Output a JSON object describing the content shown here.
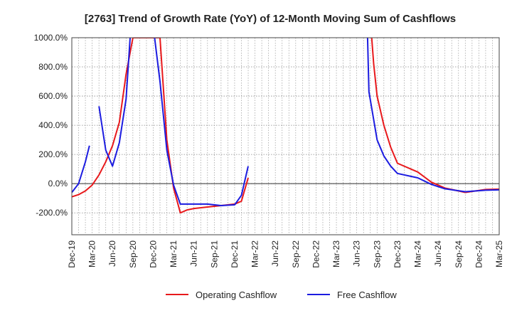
{
  "chart_data": {
    "type": "line",
    "title": "[2763]  Trend of Growth Rate (YoY) of 12-Month Moving Sum of Cashflows",
    "xlabel": "",
    "ylabel": "",
    "ylim": [
      -350,
      1000
    ],
    "y_ticks": [
      -200,
      0,
      200,
      400,
      600,
      800,
      1000
    ],
    "y_tick_labels": [
      "-200.0%",
      "0.0%",
      "200.0%",
      "400.0%",
      "600.0%",
      "800.0%",
      "1000.0%"
    ],
    "x_tick_labels": [
      "Dec-19",
      "Mar-20",
      "Jun-20",
      "Sep-20",
      "Dec-20",
      "Mar-21",
      "Jun-21",
      "Sep-21",
      "Dec-21",
      "Mar-22",
      "Jun-22",
      "Sep-22",
      "Dec-22",
      "Mar-23",
      "Jun-23",
      "Sep-23",
      "Dec-23",
      "Mar-24",
      "Jun-24",
      "Sep-24",
      "Dec-24",
      "Mar-25"
    ],
    "grid": true,
    "legend_position": "bottom",
    "series": [
      {
        "name": "Operating Cashflow",
        "color": "#e8191c",
        "points": [
          [
            0,
            -90
          ],
          [
            1,
            -75
          ],
          [
            2,
            -50
          ],
          [
            3,
            -10
          ],
          [
            4,
            60
          ],
          [
            5,
            150
          ],
          [
            6,
            260
          ],
          [
            7,
            420
          ],
          [
            8,
            750
          ],
          [
            9,
            1000
          ],
          [
            9.1,
            1000
          ],
          [
            12.9,
            1000
          ],
          [
            13,
            1000
          ],
          [
            14,
            300
          ],
          [
            15,
            -30
          ],
          [
            16,
            -200
          ],
          [
            17,
            -180
          ],
          [
            18,
            -170
          ],
          [
            20,
            -160
          ],
          [
            22,
            -150
          ],
          [
            24,
            -140
          ],
          [
            25,
            -120
          ],
          [
            26,
            40
          ],
          null,
          [
            44.2,
            1000
          ],
          [
            44.5,
            820
          ],
          [
            45,
            600
          ],
          [
            46,
            400
          ],
          [
            47,
            250
          ],
          [
            48,
            140
          ],
          [
            51,
            80
          ],
          [
            53,
            10
          ],
          [
            55,
            -30
          ],
          [
            58,
            -60
          ],
          [
            61,
            -40
          ],
          [
            65,
            -35
          ],
          [
            68,
            -20
          ]
        ]
      },
      {
        "name": "Free Cashflow",
        "color": "#1c1ce0",
        "points": [
          [
            0,
            -60
          ],
          [
            1,
            0
          ],
          [
            2,
            150
          ],
          [
            2.6,
            260
          ],
          null,
          [
            4,
            530
          ],
          [
            5,
            230
          ],
          [
            6,
            120
          ],
          [
            7,
            280
          ],
          [
            8,
            580
          ],
          [
            8.6,
            1000
          ],
          null,
          [
            12.2,
            1000
          ],
          [
            13,
            700
          ],
          [
            14,
            230
          ],
          [
            15,
            -10
          ],
          [
            16,
            -140
          ],
          [
            20,
            -140
          ],
          [
            22,
            -150
          ],
          [
            24,
            -145
          ],
          [
            25,
            -80
          ],
          [
            26,
            120
          ],
          null,
          [
            43.6,
            1000
          ],
          [
            43.8,
            630
          ],
          [
            45,
            300
          ],
          [
            46,
            190
          ],
          [
            47,
            120
          ],
          [
            48,
            70
          ],
          [
            51,
            40
          ],
          [
            53,
            -5
          ],
          [
            55,
            -35
          ],
          [
            58,
            -55
          ],
          [
            61,
            -45
          ],
          [
            65,
            -40
          ],
          [
            68,
            -50
          ]
        ]
      }
    ]
  }
}
